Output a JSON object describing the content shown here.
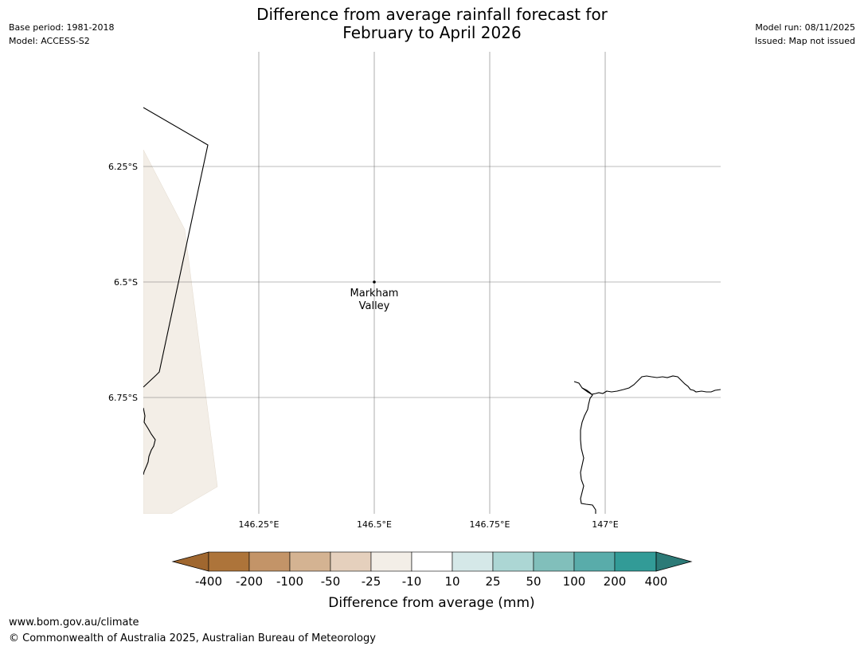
{
  "header": {
    "title_line1": "Difference from average rainfall forecast for",
    "title_line2": "February to April 2026",
    "base_period": "Base period: 1981-2018",
    "model": "Model: ACCESS-S2",
    "model_run": "Model run: 08/11/2025",
    "issued": "Issued: Map not issued"
  },
  "map": {
    "lat_labels": [
      "6.25°S",
      "6.5°S",
      "6.75°S"
    ],
    "lon_labels": [
      "146.25°E",
      "146.5°E",
      "146.75°E",
      "147°E"
    ],
    "place": {
      "name_line1": "Markham",
      "name_line2": "Valley",
      "lon": 146.5,
      "lat": -6.5
    },
    "shaded_region_category": "-25 to -10",
    "colors": {
      "gridline": "#555555",
      "coastline": "#000000",
      "shade": "#f3eee7"
    }
  },
  "colorbar": {
    "title": "Difference from average (mm)",
    "ticks": [
      "-400",
      "-200",
      "-100",
      "-50",
      "-25",
      "-10",
      "10",
      "25",
      "50",
      "100",
      "200",
      "400"
    ],
    "colors": [
      "#a0672f",
      "#ad743a",
      "#c39468",
      "#d4b392",
      "#e5d0bd",
      "#f3eee7",
      "#ffffff",
      "#d5e8e8",
      "#acd6d4",
      "#81bfbb",
      "#59acaa",
      "#329b97",
      "#2c7a77"
    ]
  },
  "footer": {
    "url": "www.bom.gov.au/climate",
    "copyright": "© Commonwealth of Australia 2025, Australian Bureau of Meteorology"
  }
}
